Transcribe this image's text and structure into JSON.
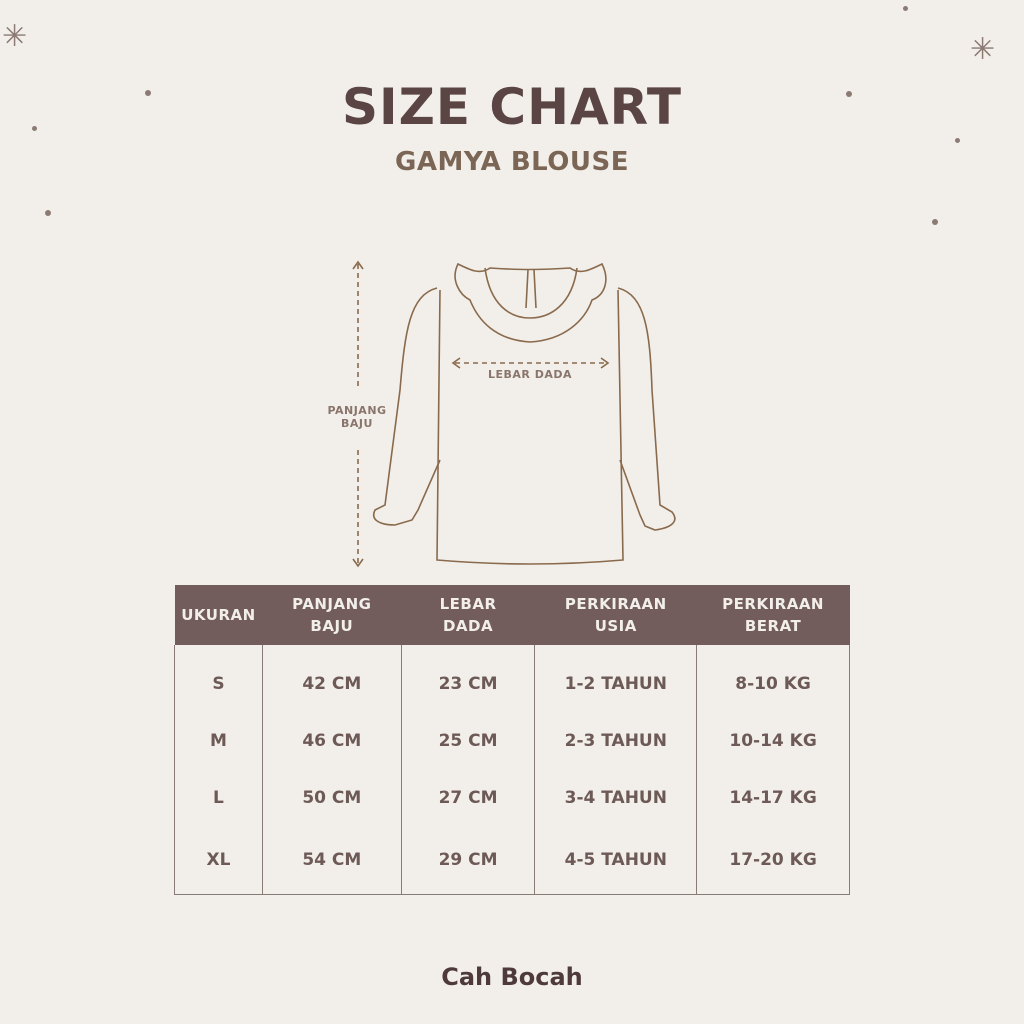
{
  "header": {
    "title": "SIZE CHART",
    "subtitle": "GAMYA BLOUSE"
  },
  "diagram": {
    "length_label_1": "PANJANG",
    "length_label_2": "BAJU",
    "chest_label": "LEBAR DADA"
  },
  "table": {
    "columns": [
      [
        "UKURAN",
        ""
      ],
      [
        "PANJANG",
        "BAJU"
      ],
      [
        "LEBAR",
        "DADA"
      ],
      [
        "PERKIRAAN",
        "USIA"
      ],
      [
        "PERKIRAAN",
        "BERAT"
      ]
    ],
    "rows": [
      [
        "S",
        "42 CM",
        "23 CM",
        "1-2 TAHUN",
        "8-10 KG"
      ],
      [
        "M",
        "46 CM",
        "25 CM",
        "2-3 TAHUN",
        "10-14 KG"
      ],
      [
        "L",
        "50 CM",
        "27 CM",
        "3-4 TAHUN",
        "14-17 KG"
      ],
      [
        "XL",
        "54 CM",
        "29 CM",
        "4-5 TAHUN",
        "17-20 KG"
      ]
    ]
  },
  "brand": "Cah Bocah",
  "colors": {
    "background": "#f2efea",
    "header": "#725c5c",
    "title": "#5a4444",
    "text": "#6d5a56"
  }
}
